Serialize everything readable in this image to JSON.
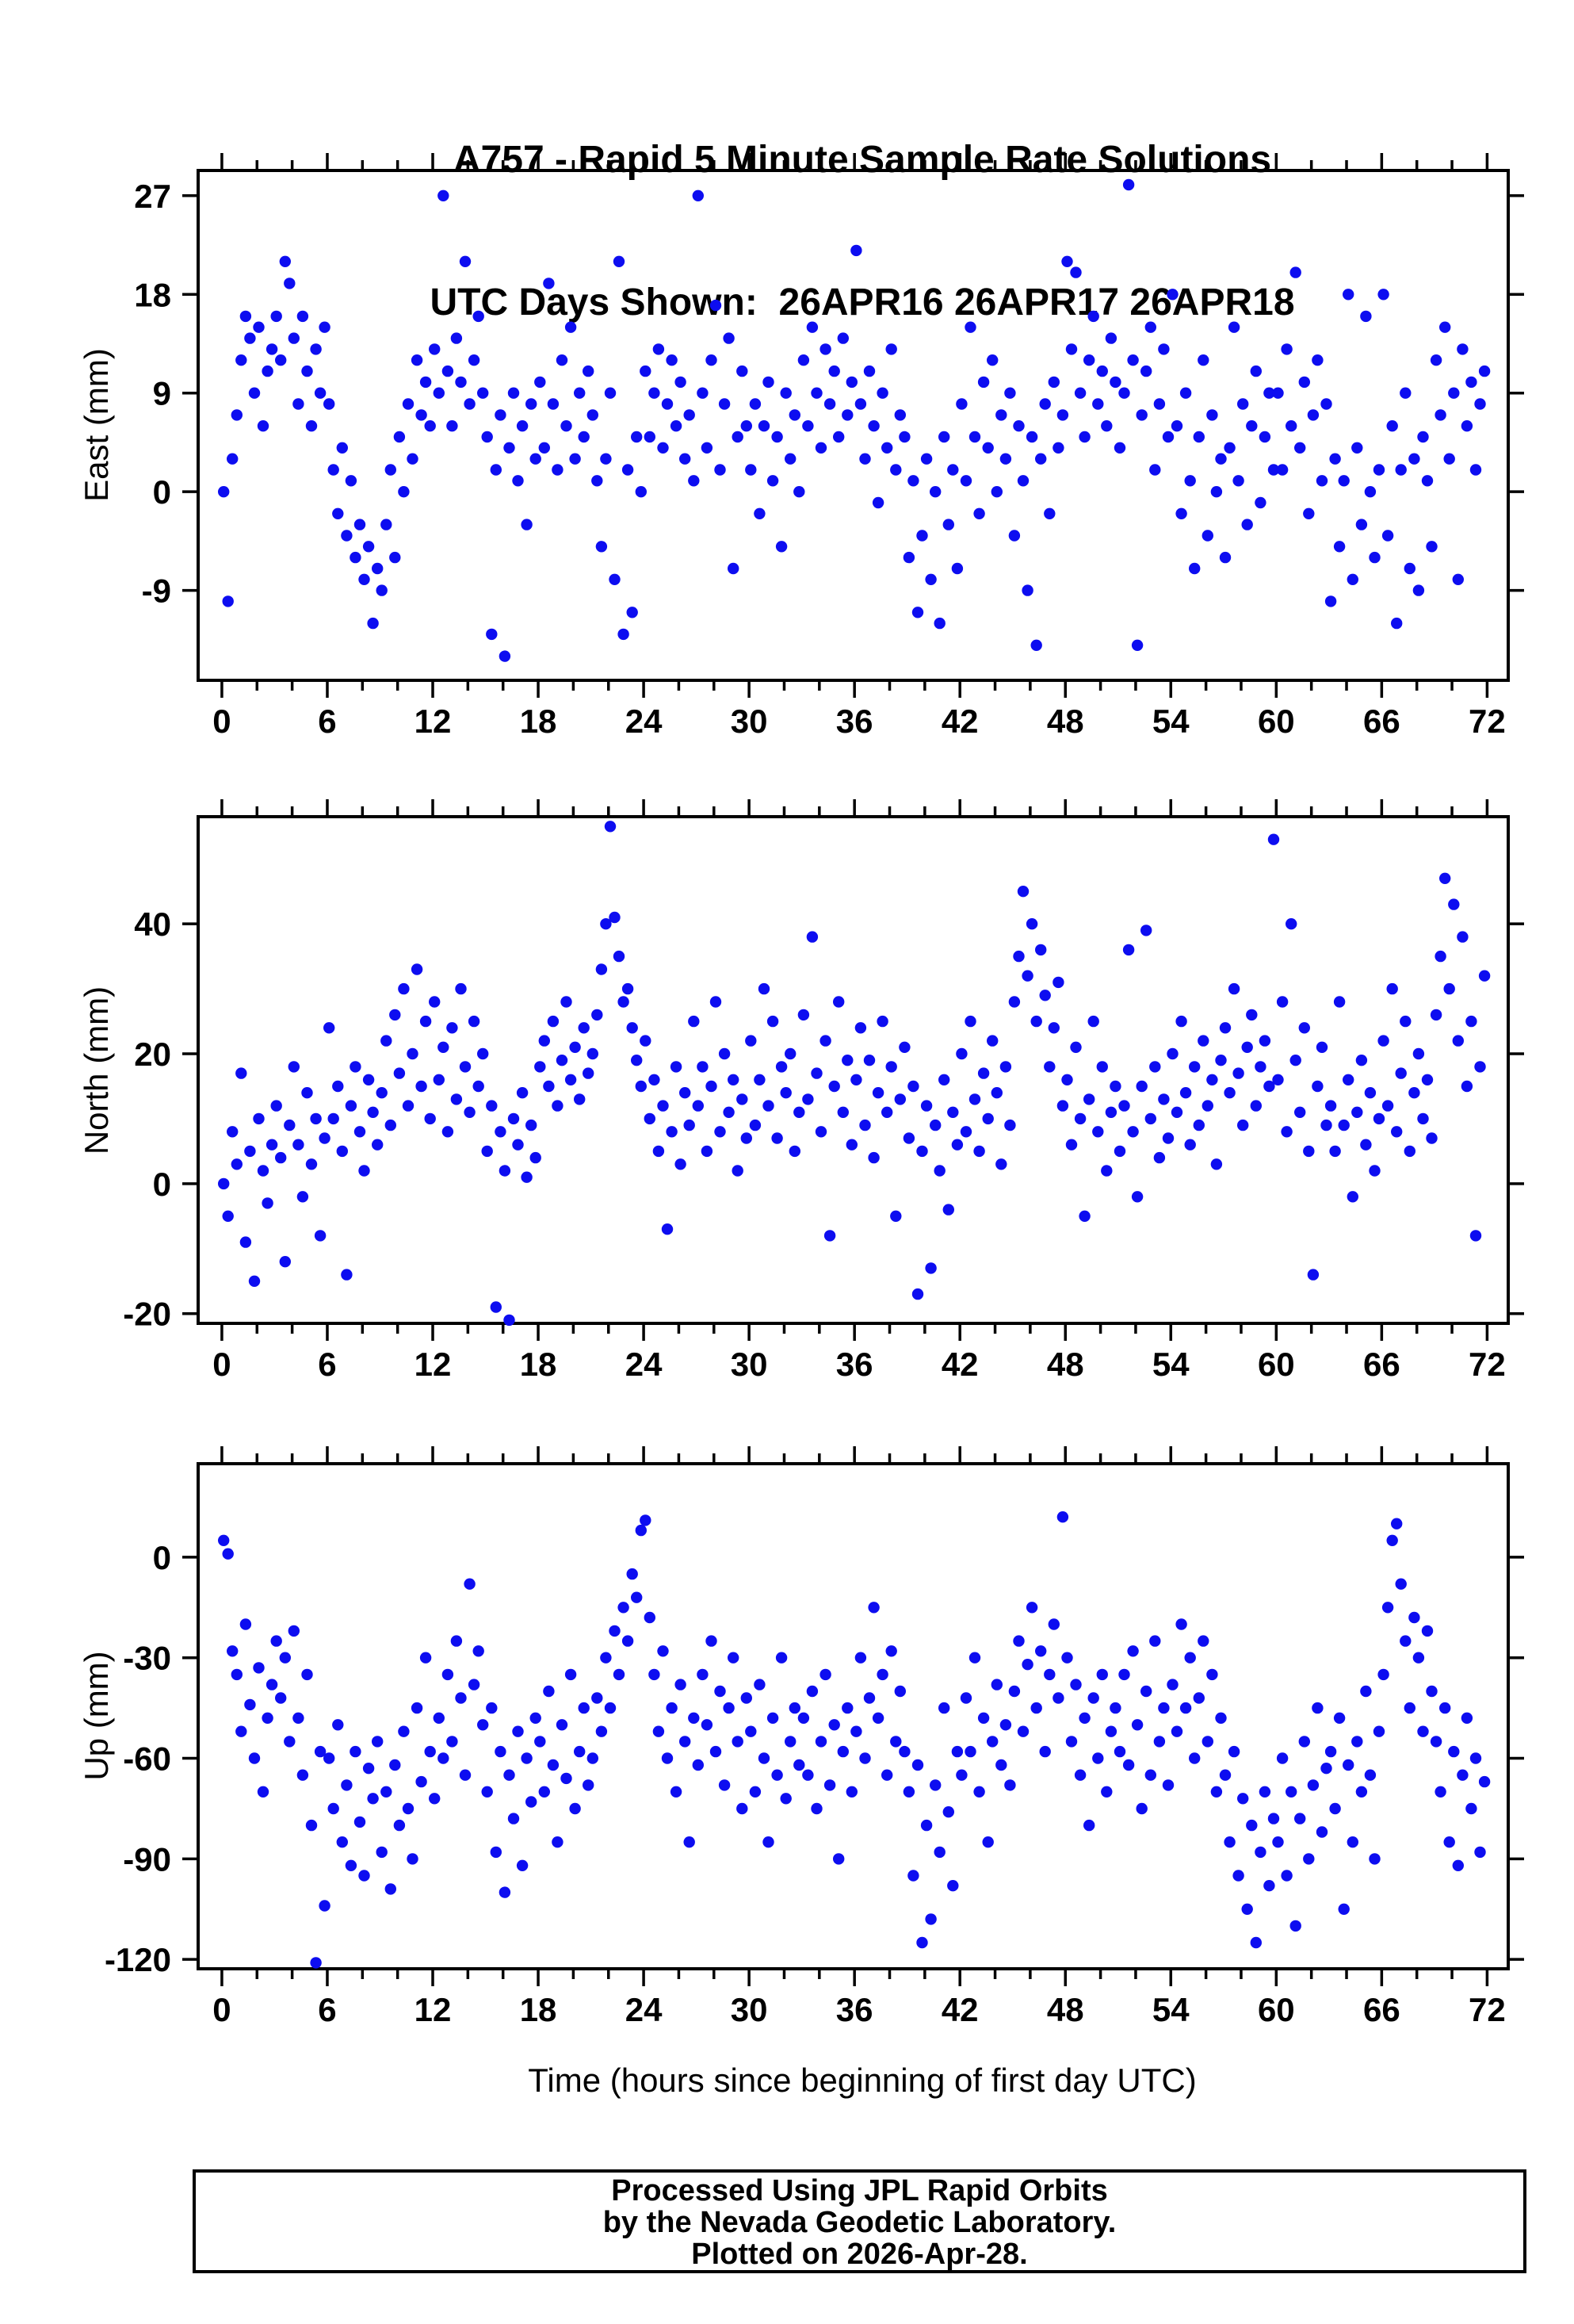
{
  "title": {
    "line1": "A757 - Rapid 5 Minute Sample Rate Solutions",
    "line2": "UTC Days Shown:  26APR16 26APR17 26APR18"
  },
  "footer": {
    "line1": "Processed Using JPL Rapid Orbits",
    "line2": "by the Nevada Geodetic Laboratory.",
    "line3": "Plotted on 2026-Apr-28."
  },
  "xaxis": {
    "label": "Time (hours since beginning of first day UTC)",
    "ticks": [
      0,
      6,
      12,
      18,
      24,
      30,
      36,
      42,
      48,
      54,
      60,
      66,
      72
    ],
    "minor_step": 2,
    "xlim": [
      -1.35,
      73.2
    ]
  },
  "style": {
    "dot_color": "#0d0df0",
    "axis_color": "#000000",
    "dot_radius": 7.2
  },
  "chart_data": [
    {
      "type": "scatter",
      "name": "east",
      "ylabel": "East (mm)",
      "yticks": [
        27,
        18,
        9,
        0,
        -9
      ],
      "ylim": [
        -17.2,
        29.3
      ],
      "x_start": 0.1,
      "x_step": 0.25,
      "y": [
        0,
        -10,
        3,
        7,
        12,
        16,
        14,
        9,
        15,
        6,
        11,
        13,
        16,
        12,
        21,
        19,
        14,
        8,
        16,
        11,
        6,
        13,
        9,
        15,
        8,
        2,
        -2,
        4,
        -4,
        1,
        -6,
        -3,
        -8,
        -5,
        -12,
        -7,
        -9,
        -3,
        2,
        -6,
        5,
        0,
        8,
        3,
        12,
        7,
        10,
        6,
        13,
        9,
        27,
        11,
        6,
        14,
        10,
        21,
        8,
        12,
        16,
        9,
        5,
        -13,
        2,
        7,
        -15,
        4,
        9,
        1,
        6,
        -3,
        8,
        3,
        10,
        4,
        19,
        8,
        2,
        12,
        6,
        15,
        3,
        9,
        5,
        11,
        7,
        1,
        -5,
        3,
        9,
        -8,
        21,
        -13,
        2,
        -11,
        5,
        0,
        11,
        5,
        9,
        13,
        4,
        8,
        12,
        6,
        10,
        3,
        7,
        1,
        27,
        9,
        4,
        12,
        17,
        2,
        8,
        14,
        -7,
        5,
        11,
        6,
        2,
        8,
        -2,
        6,
        10,
        1,
        5,
        -5,
        9,
        3,
        7,
        0,
        12,
        6,
        15,
        9,
        4,
        13,
        8,
        11,
        5,
        14,
        7,
        10,
        22,
        8,
        3,
        11,
        6,
        -1,
        9,
        4,
        13,
        2,
        7,
        5,
        -6,
        1,
        -11,
        -4,
        3,
        -8,
        0,
        -12,
        5,
        -3,
        2,
        -7,
        8,
        1,
        15,
        5,
        -2,
        10,
        4,
        12,
        0,
        7,
        3,
        9,
        -4,
        6,
        1,
        -9,
        5,
        -14,
        3,
        8,
        -2,
        10,
        4,
        7,
        21,
        13,
        20,
        9,
        5,
        12,
        16,
        8,
        11,
        6,
        14,
        10,
        4,
        9,
        28,
        12,
        -14,
        7,
        11,
        15,
        2,
        8,
        13,
        5,
        18,
        6,
        -2,
        9,
        1,
        -7,
        5,
        12,
        -4,
        7,
        0,
        3,
        -6,
        4,
        15,
        1,
        8,
        -3,
        6,
        11,
        -1,
        5,
        9,
        2,
        9,
        2,
        13,
        6,
        20,
        4,
        10,
        -2,
        7,
        12,
        1,
        8,
        -10,
        3,
        -5,
        1,
        18,
        -8,
        4,
        -3,
        16,
        0,
        -6,
        2,
        18,
        -4,
        6,
        -12,
        2,
        9,
        -7,
        3,
        -9,
        5,
        1,
        -5,
        12,
        7,
        15,
        3,
        9,
        -8,
        13,
        6,
        10,
        2,
        8,
        11
      ]
    },
    {
      "type": "scatter",
      "name": "north",
      "ylabel": "North (mm)",
      "yticks": [
        40,
        20,
        0,
        -20
      ],
      "ylim": [
        -21.5,
        56.5
      ],
      "x_start": 0.1,
      "x_step": 0.25,
      "y": [
        0,
        -5,
        8,
        3,
        17,
        -9,
        5,
        -15,
        10,
        2,
        -3,
        6,
        12,
        4,
        -12,
        9,
        18,
        6,
        -2,
        14,
        3,
        10,
        -8,
        7,
        24,
        10,
        15,
        5,
        -14,
        12,
        18,
        8,
        2,
        16,
        11,
        6,
        14,
        22,
        9,
        26,
        17,
        30,
        12,
        20,
        33,
        15,
        25,
        10,
        28,
        16,
        21,
        8,
        24,
        13,
        30,
        18,
        11,
        25,
        15,
        20,
        5,
        12,
        -19,
        8,
        2,
        -21,
        10,
        6,
        14,
        1,
        9,
        4,
        18,
        22,
        15,
        25,
        12,
        19,
        28,
        16,
        21,
        13,
        24,
        17,
        20,
        26,
        33,
        40,
        55,
        41,
        35,
        28,
        30,
        24,
        19,
        15,
        22,
        10,
        16,
        5,
        12,
        -7,
        8,
        18,
        3,
        14,
        9,
        25,
        12,
        18,
        5,
        15,
        28,
        8,
        20,
        11,
        16,
        2,
        13,
        7,
        22,
        9,
        16,
        30,
        12,
        25,
        7,
        18,
        14,
        20,
        5,
        11,
        26,
        13,
        38,
        17,
        8,
        22,
        -8,
        15,
        28,
        11,
        19,
        6,
        16,
        24,
        9,
        19,
        4,
        14,
        25,
        11,
        18,
        -5,
        13,
        21,
        7,
        15,
        -17,
        5,
        12,
        -13,
        9,
        2,
        16,
        -4,
        11,
        6,
        20,
        8,
        25,
        13,
        5,
        17,
        10,
        22,
        14,
        3,
        18,
        9,
        28,
        35,
        45,
        32,
        40,
        25,
        36,
        29,
        18,
        24,
        31,
        12,
        16,
        6,
        21,
        10,
        -5,
        13,
        25,
        8,
        18,
        2,
        11,
        15,
        5,
        12,
        36,
        8,
        -2,
        15,
        39,
        10,
        18,
        4,
        13,
        7,
        20,
        11,
        25,
        14,
        6,
        18,
        9,
        22,
        12,
        16,
        3,
        19,
        24,
        14,
        30,
        17,
        9,
        21,
        26,
        12,
        18,
        22,
        15,
        53,
        16,
        28,
        8,
        40,
        19,
        11,
        24,
        5,
        -14,
        15,
        21,
        9,
        12,
        5,
        28,
        9,
        16,
        -2,
        11,
        19,
        6,
        14,
        2,
        10,
        22,
        12,
        30,
        8,
        17,
        25,
        5,
        14,
        20,
        10,
        16,
        7,
        26,
        35,
        47,
        30,
        43,
        22,
        38,
        15,
        25,
        -8,
        18,
        32
      ]
    },
    {
      "type": "scatter",
      "name": "up",
      "ylabel": "Up (mm)",
      "yticks": [
        0,
        -30,
        -60,
        -90,
        -120
      ],
      "ylim": [
        -122.8,
        27.9
      ],
      "x_start": 0.1,
      "x_step": 0.25,
      "y": [
        5,
        1,
        -28,
        -35,
        -52,
        -20,
        -44,
        -60,
        -33,
        -70,
        -48,
        -38,
        -25,
        -42,
        -30,
        -55,
        -22,
        -48,
        -65,
        -35,
        -80,
        -121,
        -58,
        -104,
        -60,
        -75,
        -50,
        -85,
        -68,
        -92,
        -58,
        -79,
        -95,
        -63,
        -72,
        -55,
        -88,
        -70,
        -99,
        -62,
        -80,
        -52,
        -75,
        -90,
        -45,
        -67,
        -30,
        -58,
        -72,
        -48,
        -60,
        -35,
        -55,
        -25,
        -42,
        -65,
        -8,
        -38,
        -28,
        -50,
        -70,
        -45,
        -88,
        -58,
        -100,
        -65,
        -78,
        -52,
        -92,
        -60,
        -73,
        -48,
        -55,
        -70,
        -40,
        -62,
        -85,
        -50,
        -66,
        -35,
        -75,
        -58,
        -45,
        -68,
        -60,
        -42,
        -52,
        -30,
        -45,
        -22,
        -35,
        -15,
        -25,
        -5,
        -12,
        8,
        11,
        -18,
        -35,
        -52,
        -28,
        -60,
        -45,
        -70,
        -38,
        -55,
        -85,
        -48,
        -62,
        -35,
        -50,
        -25,
        -58,
        -40,
        -68,
        -45,
        -30,
        -55,
        -75,
        -42,
        -52,
        -70,
        -38,
        -60,
        -85,
        -48,
        -65,
        -30,
        -72,
        -55,
        -45,
        -62,
        -48,
        -65,
        -40,
        -75,
        -55,
        -35,
        -68,
        -50,
        -90,
        -58,
        -45,
        -70,
        -52,
        -30,
        -60,
        -42,
        -15,
        -48,
        -35,
        -65,
        -28,
        -55,
        -40,
        -58,
        -70,
        -95,
        -62,
        -115,
        -80,
        -108,
        -68,
        -88,
        -45,
        -76,
        -98,
        -58,
        -65,
        -42,
        -58,
        -30,
        -70,
        -48,
        -85,
        -55,
        -38,
        -62,
        -50,
        -68,
        -40,
        -25,
        -52,
        -32,
        -15,
        -45,
        -28,
        -58,
        -35,
        -20,
        -42,
        12,
        -30,
        -55,
        -38,
        -65,
        -48,
        -80,
        -42,
        -60,
        -35,
        -70,
        -52,
        -45,
        -58,
        -35,
        -62,
        -28,
        -50,
        -75,
        -40,
        -65,
        -25,
        -55,
        -45,
        -68,
        -38,
        -52,
        -20,
        -45,
        -30,
        -60,
        -42,
        -25,
        -55,
        -35,
        -70,
        -48,
        -65,
        -85,
        -58,
        -95,
        -72,
        -105,
        -80,
        -115,
        -88,
        -70,
        -98,
        -78,
        -85,
        -60,
        -95,
        -70,
        -110,
        -78,
        -55,
        -90,
        -68,
        -45,
        -82,
        -63,
        -58,
        -75,
        -48,
        -105,
        -62,
        -85,
        -55,
        -70,
        -40,
        -65,
        -90,
        -52,
        -35,
        -15,
        5,
        10,
        -8,
        -25,
        -45,
        -18,
        -30,
        -52,
        -22,
        -40,
        -55,
        -70,
        -45,
        -85,
        -58,
        -92,
        -65,
        -48,
        -75,
        -60,
        -88,
        -67
      ]
    }
  ]
}
